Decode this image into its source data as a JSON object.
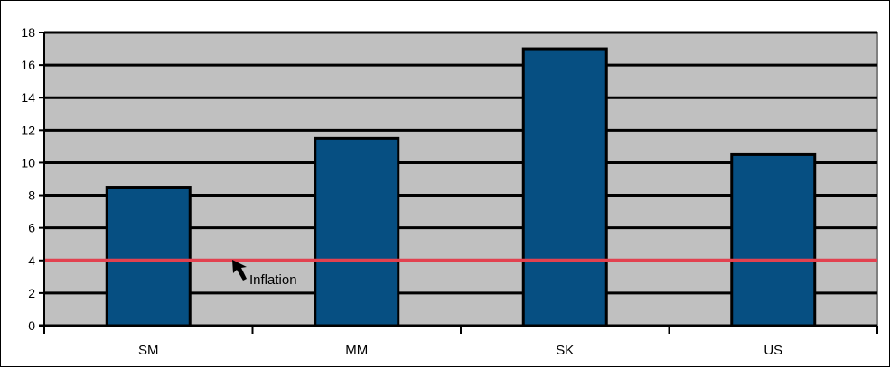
{
  "colors": {
    "plot_background": "#c0c0c0",
    "bar_fill": "#064f82",
    "bar_outline": "#000000",
    "gridline": "#000000",
    "inflation_line": "#e2414f",
    "frame": "#000000"
  },
  "chart_data": {
    "type": "bar",
    "title": "",
    "xlabel": "",
    "ylabel": "",
    "categories": [
      "SM",
      "MM",
      "SK",
      "US"
    ],
    "values": [
      8.5,
      11.5,
      17,
      10.5
    ],
    "ylim": [
      0,
      18
    ],
    "yticks": [
      "0",
      "2",
      "4",
      "6",
      "8",
      "10",
      "12",
      "14",
      "16",
      "18"
    ],
    "grid": "horizontal",
    "legend": "none",
    "reference_line": {
      "value": 4,
      "label": "Inflation",
      "label_near_category": "SM"
    }
  }
}
